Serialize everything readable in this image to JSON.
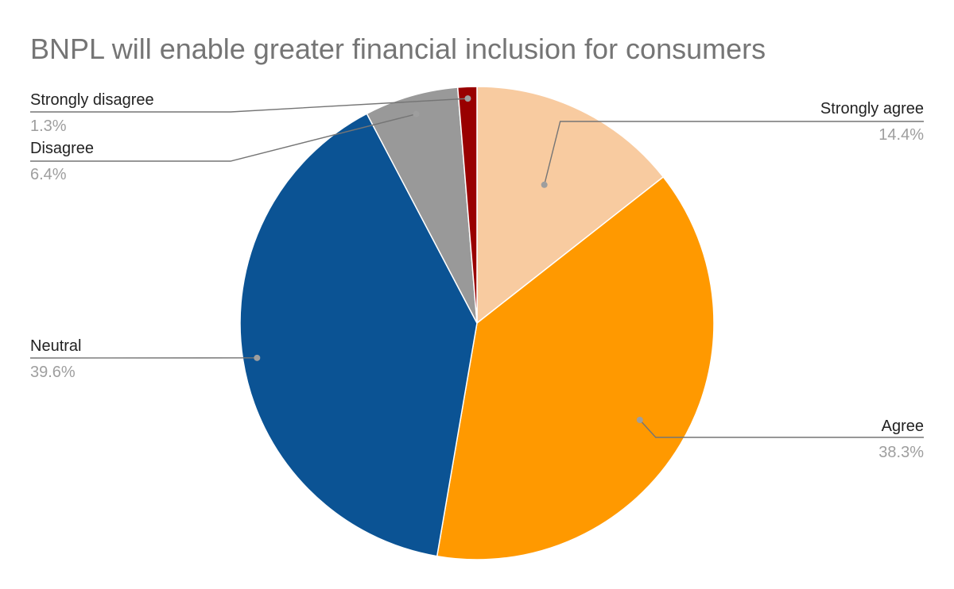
{
  "chart_data": {
    "type": "pie",
    "title": "BNPL will enable greater financial inclusion for consumers",
    "slices": [
      {
        "label": "Strongly agree",
        "value": 14.4,
        "value_label": "14.4%",
        "color": "#f8cba0"
      },
      {
        "label": "Agree",
        "value": 38.3,
        "value_label": "38.3%",
        "color": "#ff9900"
      },
      {
        "label": "Neutral",
        "value": 39.6,
        "value_label": "39.6%",
        "color": "#0b5394"
      },
      {
        "label": "Disagree",
        "value": 6.4,
        "value_label": "6.4%",
        "color": "#999999"
      },
      {
        "label": "Strongly disagree",
        "value": 1.3,
        "value_label": "1.3%",
        "color": "#990000"
      }
    ],
    "legend": "none",
    "data_labels": "outside with leader lines"
  }
}
